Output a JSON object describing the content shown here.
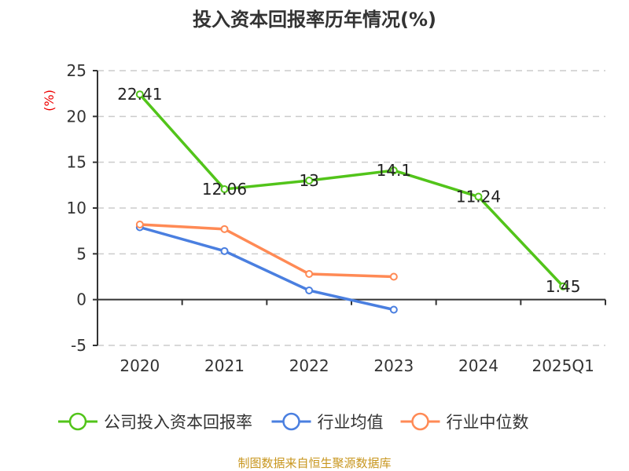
{
  "chart_data": {
    "type": "line",
    "title": "投入资本回报率历年情况(%)",
    "ylabel": "(%)",
    "categories": [
      "2020",
      "2021",
      "2022",
      "2023",
      "2024",
      "2025Q1"
    ],
    "ylim": [
      -5,
      25
    ],
    "yticks": [
      -5,
      0,
      5,
      10,
      15,
      20,
      25
    ],
    "grid": true,
    "legend_position": "bottom",
    "series": [
      {
        "name": "公司投入资本回报率",
        "color": "#52c41a",
        "values": [
          22.41,
          12.06,
          13,
          14.1,
          11.24,
          1.45
        ],
        "labels": [
          "22.41",
          "12.06",
          "13",
          "14.1",
          "11.24",
          "1.45"
        ]
      },
      {
        "name": "行业均值",
        "color": "#4a7fe0",
        "values": [
          7.9,
          5.3,
          1.0,
          -1.1,
          null,
          null
        ]
      },
      {
        "name": "行业中位数",
        "color": "#ff8a55",
        "values": [
          8.2,
          7.7,
          2.8,
          2.5,
          null,
          null
        ]
      }
    ],
    "source": "制图数据来自恒生聚源数据库"
  }
}
